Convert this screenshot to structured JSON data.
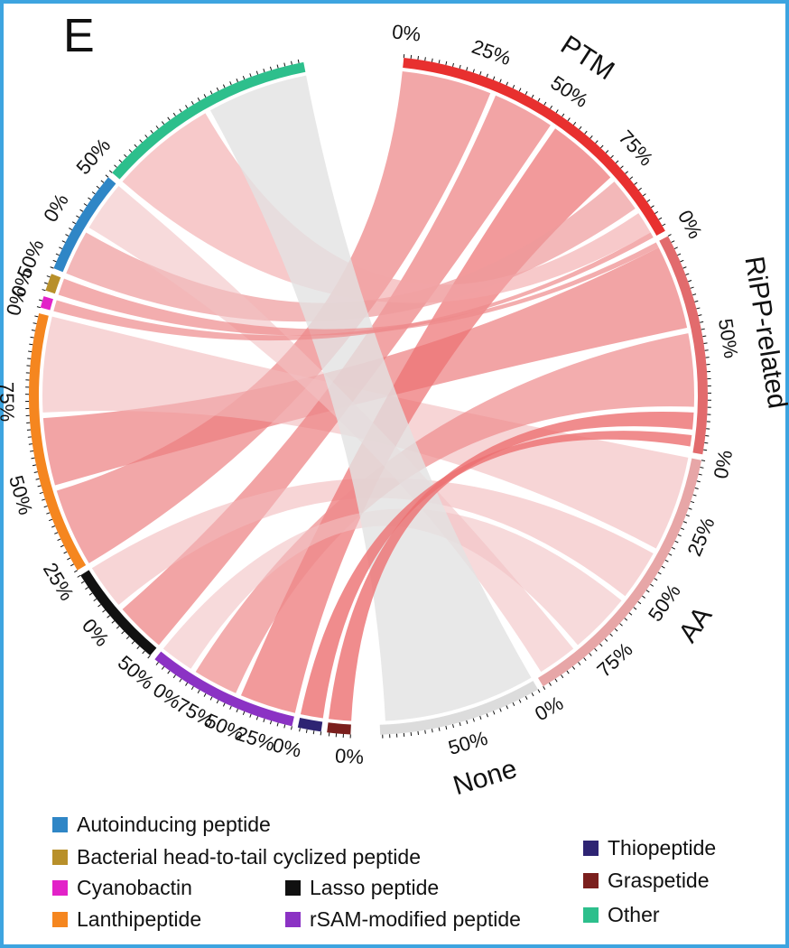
{
  "panel_label": "E",
  "chart_data": {
    "type": "chord",
    "groups_right": [
      {
        "name": "PTM",
        "color": "#e8302f",
        "ticks": [
          "0%",
          "25%",
          "50%",
          "75%"
        ]
      },
      {
        "name": "RiPP-related",
        "color": "#e26b6d",
        "ticks": [
          "0%",
          "50%"
        ]
      },
      {
        "name": "AA",
        "color": "#e7a6a7",
        "ticks": [
          "0%",
          "25%",
          "50%",
          "75%"
        ]
      },
      {
        "name": "None",
        "color": "#dcdcdc",
        "ticks": [
          "0%",
          "50%"
        ]
      }
    ],
    "groups_left": [
      {
        "name": "Graspetide",
        "color": "#7b1f1d",
        "ticks": [
          "0%"
        ]
      },
      {
        "name": "Thiopeptide",
        "color": "#2e2473",
        "ticks": []
      },
      {
        "name": "rSAM-modified peptide",
        "color": "#8b32c4",
        "ticks": [
          "0%",
          "25%",
          "50%",
          "75%",
          "0%"
        ]
      },
      {
        "name": "Lasso peptide",
        "color": "#111111",
        "ticks": [
          "50%",
          "0%"
        ]
      },
      {
        "name": "Lanthipeptide",
        "color": "#f5861f",
        "ticks": [
          "25%",
          "50%",
          "75%"
        ]
      },
      {
        "name": "Cyanobactin",
        "color": "#e222c8",
        "ticks": [
          "0%"
        ]
      },
      {
        "name": "Bacterial head-to-tail cyclized peptide",
        "color": "#b8902a",
        "ticks": [
          "0%"
        ]
      },
      {
        "name": "Autoinducing peptide",
        "color": "#2f86c6",
        "ticks": [
          "50%",
          "0%"
        ]
      },
      {
        "name": "Other",
        "color": "#2dbf8c",
        "ticks": [
          "50%"
        ]
      }
    ]
  },
  "legend": [
    {
      "label": "Autoinducing peptide",
      "color": "#2f86c6"
    },
    {
      "label": "Bacterial head-to-tail cyclized peptide",
      "color": "#b8902a"
    },
    {
      "label": "Cyanobactin",
      "color": "#e222c8"
    },
    {
      "label": "Lanthipeptide",
      "color": "#f5861f"
    },
    {
      "label": "Lasso peptide",
      "color": "#111111"
    },
    {
      "label": "rSAM-modified peptide",
      "color": "#8b32c4"
    },
    {
      "label": "Thiopeptide",
      "color": "#2e2473"
    },
    {
      "label": "Graspetide",
      "color": "#7b1f1d"
    },
    {
      "label": "Other",
      "color": "#2dbf8c"
    }
  ]
}
